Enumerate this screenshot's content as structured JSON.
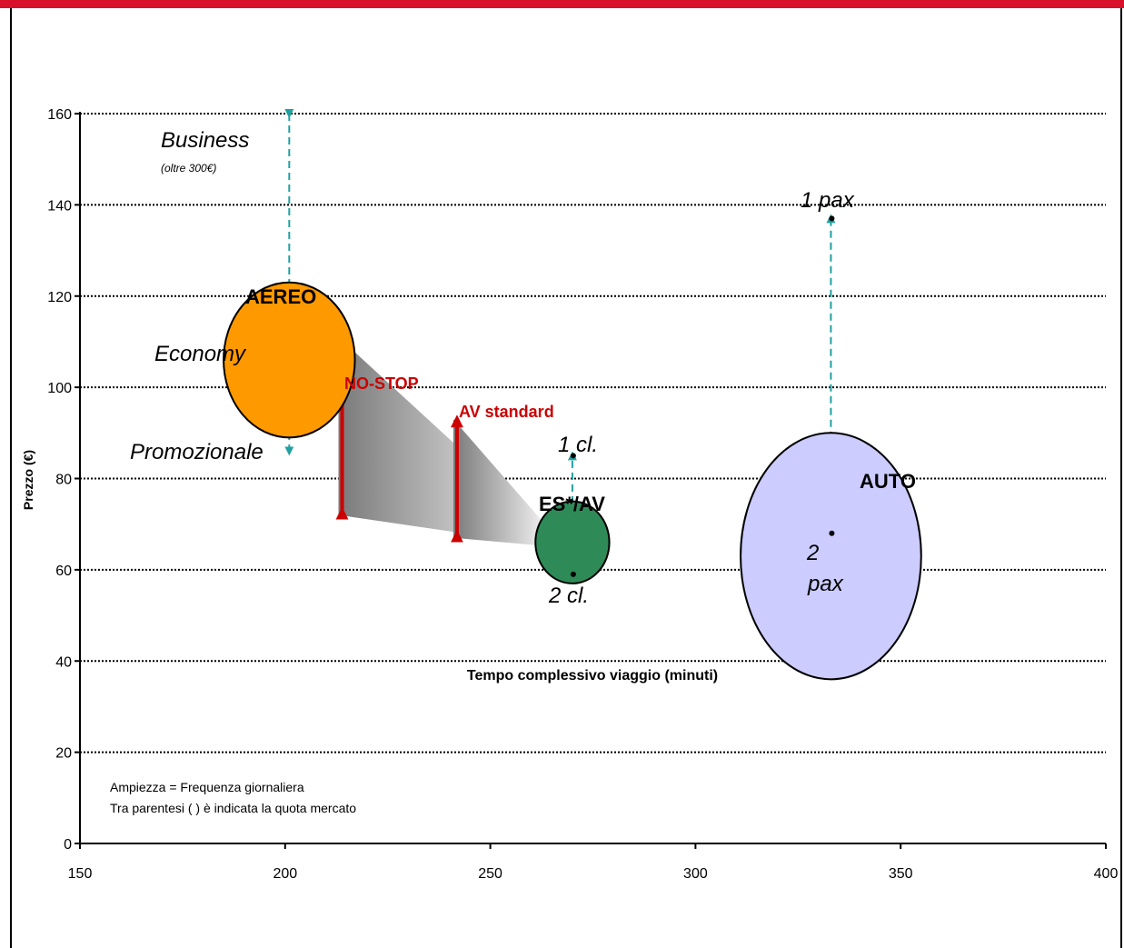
{
  "chart_data": {
    "type": "scatter",
    "title": "",
    "xlabel": "Tempo complessivo viaggio (minuti)",
    "ylabel": "Prezzo (€)",
    "xlim": [
      150,
      400
    ],
    "ylim": [
      0,
      160
    ],
    "x_ticks": [
      150,
      200,
      250,
      300,
      350,
      400
    ],
    "y_ticks": [
      0,
      20,
      40,
      60,
      80,
      100,
      120,
      140,
      160
    ],
    "grid": "horizontal dotted",
    "bubbles": [
      {
        "label": "AEREO",
        "x": 201,
        "y": 106,
        "size_x": 16,
        "size_y": 17,
        "color": "#ff9900"
      },
      {
        "label": "ES*/AV",
        "x": 270,
        "y": 66,
        "size_x": 9,
        "size_y": 9,
        "color": "#2e8b57"
      },
      {
        "label": "AUTO",
        "x": 333,
        "y": 63,
        "size_x": 22,
        "size_y": 27,
        "color": "#ccccff",
        "inner_label_1": "2",
        "inner_label_2": "pax"
      }
    ],
    "ranges": [
      {
        "name": "aereo-range",
        "x": 201,
        "y_from": 160,
        "y_to": 86,
        "color": "#20a0a0",
        "labels": {
          "top": "Business",
          "top_note": "(oltre 300€)",
          "middle": "Economy",
          "bottom": "Promozionale"
        }
      },
      {
        "name": "treno-range",
        "x": 270,
        "y_from": 59,
        "y_to": 85,
        "color": "#20a0a0",
        "labels": {
          "top": "1 cl.",
          "bottom": "2 cl."
        }
      },
      {
        "name": "auto-range",
        "x": 333,
        "y_from": 68,
        "y_to": 137,
        "color": "#20a0a0",
        "labels": {
          "top": "1 pax"
        }
      }
    ],
    "arrows": [
      {
        "label": "NO-STOP",
        "x": 213,
        "y_from": 72,
        "y_to": 111,
        "color": "#cc0000"
      },
      {
        "label": "AV standard",
        "x": 241,
        "y_from": 67,
        "y_to": 93,
        "color": "#cc0000"
      }
    ],
    "triangles": [
      {
        "name": "no-stop-wedge",
        "x0": 213,
        "y_top": 111,
        "y_bottom": 72,
        "x1": 270,
        "y_tip": 66
      },
      {
        "name": "av-standard-wedge",
        "x0": 241,
        "y_top": 93,
        "y_bottom": 67,
        "x1": 270,
        "y_tip": 66
      }
    ],
    "notes": [
      "Ampiezza = Frequenza giornaliera",
      "Tra parentesi ( ) è indicata la quota mercato"
    ]
  }
}
